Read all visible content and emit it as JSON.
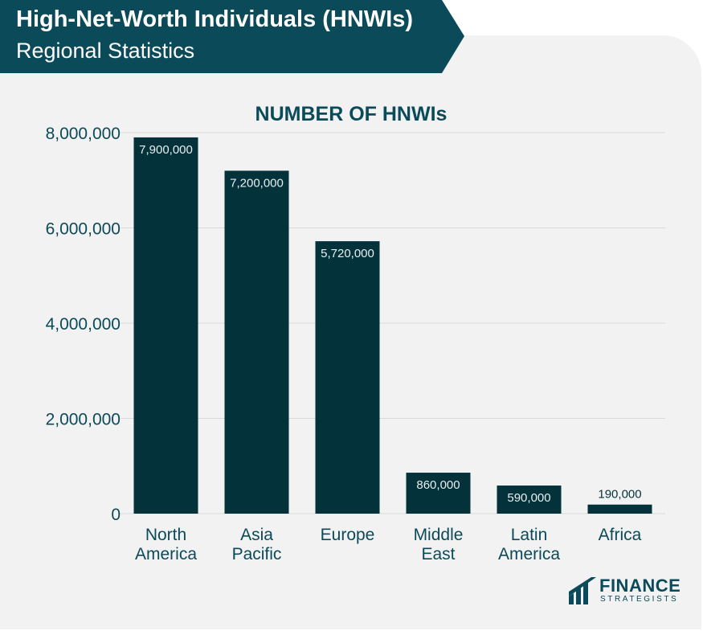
{
  "banner": {
    "title": "High-Net-Worth Individuals (HNWIs)",
    "subtitle": "Regional Statistics"
  },
  "colors": {
    "banner": "#0b4a59",
    "bar": "#04323a",
    "grid": "#d9d9d9",
    "text": "#0b4a59",
    "label_inside": "#e8eef0",
    "label_outside": "#04323a"
  },
  "logo": {
    "icon": "finance-strategists-logo-icon",
    "main": "FINANCE",
    "sub": "STRATEGISTS"
  },
  "chart_data": {
    "type": "bar",
    "title": "NUMBER OF HNWIs",
    "categories": [
      [
        "North",
        "America"
      ],
      [
        "Asia",
        "Pacific"
      ],
      [
        "Europe"
      ],
      [
        "Middle",
        "East"
      ],
      [
        "Latin",
        "America"
      ],
      [
        "Africa"
      ]
    ],
    "values": [
      7900000,
      7200000,
      5720000,
      860000,
      590000,
      190000
    ],
    "data_labels": [
      "7,900,000",
      "7,200,000",
      "5,720,000",
      "860,000",
      "590,000",
      "190,000"
    ],
    "yticks": [
      0,
      2000000,
      4000000,
      6000000,
      8000000
    ],
    "ytick_labels": [
      "0",
      "2,000,000",
      "4,000,000",
      "6,000,000",
      "8,000,000"
    ],
    "ylim": [
      0,
      8000000
    ],
    "grid": true,
    "xlabel": "",
    "ylabel": ""
  }
}
